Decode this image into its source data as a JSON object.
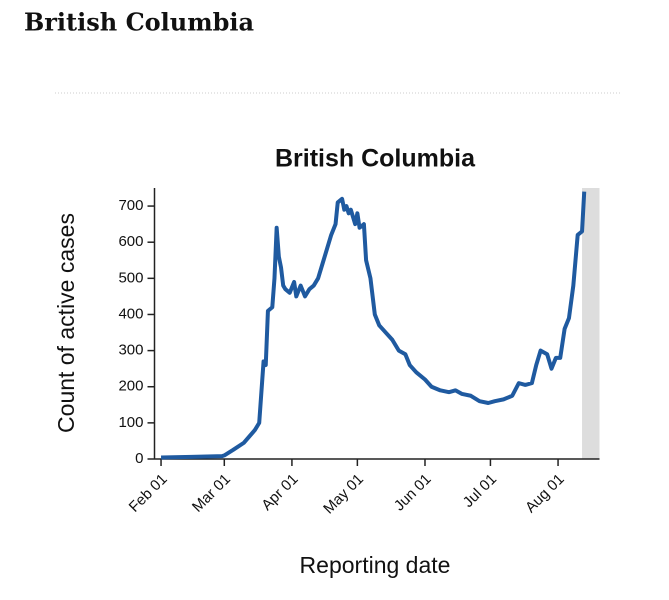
{
  "heading": "British Columbia",
  "chart_data": {
    "type": "line",
    "title": "British Columbia",
    "x_label": "Reporting date",
    "y_label": "Count of active cases",
    "x": [
      "02-01",
      "02-15",
      "02-29",
      "03-01",
      "03-05",
      "03-10",
      "03-15",
      "03-17",
      "03-19",
      "03-20",
      "03-21",
      "03-23",
      "03-24",
      "03-25",
      "03-26",
      "03-27",
      "03-28",
      "03-29",
      "03-31",
      "04-02",
      "04-03",
      "04-05",
      "04-07",
      "04-09",
      "04-11",
      "04-13",
      "04-15",
      "04-17",
      "04-19",
      "04-21",
      "04-22",
      "04-24",
      "04-25",
      "04-26",
      "04-27",
      "04-28",
      "04-30",
      "05-01",
      "05-02",
      "05-04",
      "05-05",
      "05-07",
      "05-09",
      "05-11",
      "05-14",
      "05-17",
      "05-20",
      "05-23",
      "05-25",
      "05-28",
      "06-01",
      "06-04",
      "06-08",
      "06-12",
      "06-15",
      "06-18",
      "06-22",
      "06-26",
      "06-30",
      "07-03",
      "07-07",
      "07-11",
      "07-14",
      "07-17",
      "07-20",
      "07-22",
      "07-24",
      "07-27",
      "07-29",
      "07-31",
      "08-02",
      "08-04",
      "08-06",
      "08-08",
      "08-10",
      "08-12",
      "08-13"
    ],
    "series": [
      {
        "name": "Active cases",
        "color": "#1f5aa0",
        "values": [
          4,
          6,
          8,
          10,
          25,
          45,
          80,
          100,
          270,
          260,
          410,
          420,
          500,
          640,
          560,
          530,
          480,
          470,
          460,
          490,
          450,
          480,
          450,
          470,
          480,
          500,
          540,
          580,
          620,
          650,
          710,
          720,
          690,
          700,
          680,
          690,
          650,
          680,
          640,
          650,
          550,
          500,
          400,
          370,
          350,
          330,
          300,
          290,
          260,
          240,
          220,
          200,
          190,
          185,
          190,
          180,
          175,
          160,
          155,
          160,
          165,
          175,
          210,
          205,
          210,
          260,
          300,
          290,
          250,
          280,
          280,
          360,
          390,
          480,
          620,
          630,
          740
        ]
      }
    ],
    "xlim": [
      "01-29",
      "08-20"
    ],
    "xticks": [
      {
        "value": "02-01",
        "label": "Feb 01"
      },
      {
        "value": "03-01",
        "label": "Mar 01"
      },
      {
        "value": "04-01",
        "label": "Apr 01"
      },
      {
        "value": "05-01",
        "label": "May 01"
      },
      {
        "value": "06-01",
        "label": "Jun 01"
      },
      {
        "value": "07-01",
        "label": "Jul 01"
      },
      {
        "value": "08-01",
        "label": "Aug 01"
      }
    ],
    "ylim": [
      0,
      750
    ],
    "yticks": [
      0,
      100,
      200,
      300,
      400,
      500,
      600,
      700
    ],
    "shade": {
      "range": [
        "08-12",
        "08-20"
      ],
      "color": "#dddddd"
    }
  }
}
